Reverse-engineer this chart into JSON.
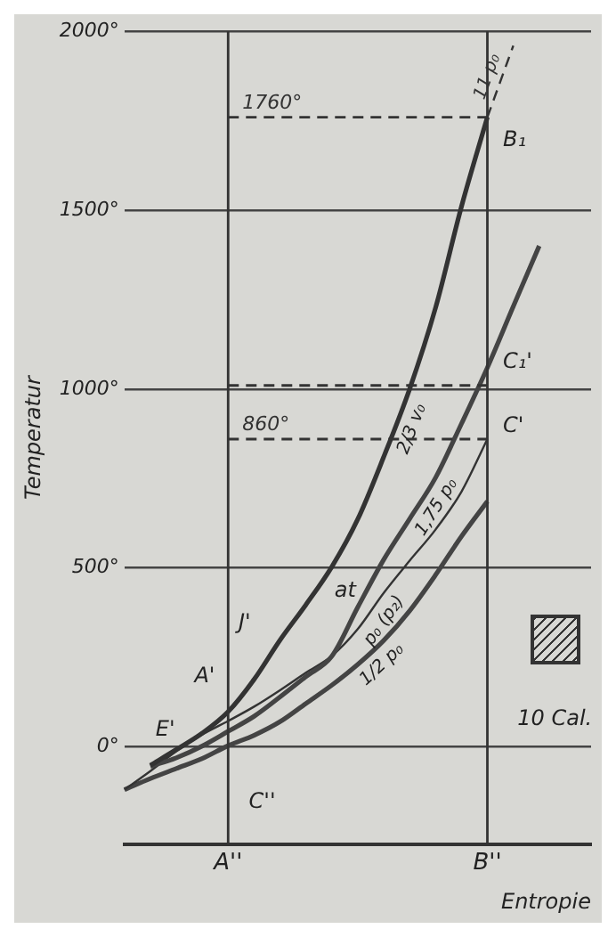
{
  "chart_data": {
    "type": "line",
    "xlabel": "Entropie",
    "ylabel": "Temperatur",
    "categories": [
      null,
      null,
      null,
      null,
      "A''",
      null,
      null,
      null,
      null,
      null,
      null,
      null,
      null,
      null,
      "B''",
      null,
      null,
      null,
      null
    ],
    "ylim": [
      -273,
      2000
    ],
    "yticks": [
      {
        "value": 0,
        "label": "0°"
      },
      {
        "value": 500,
        "label": "500°"
      },
      {
        "value": 1000,
        "label": "1000°"
      },
      {
        "value": 1500,
        "label": "1500°"
      },
      {
        "value": 2000,
        "label": "2000°"
      }
    ],
    "grid": "y",
    "marker": "none",
    "series": [
      {
        "name": "2/3 v₀",
        "color": "#333333",
        "values": [
          null,
          -52,
          -8,
          38,
          98,
          188,
          298,
          397,
          503,
          636,
          810,
          1000,
          1227,
          1510,
          1760,
          null,
          null,
          null,
          null
        ]
      },
      {
        "name": "11 p₀",
        "color": "#333333",
        "line_style": "dashed",
        "values": [
          null,
          null,
          null,
          null,
          null,
          null,
          null,
          null,
          null,
          null,
          null,
          null,
          null,
          null,
          1760,
          1960,
          null,
          null,
          null
        ]
      },
      {
        "name": "1,75 p₀",
        "color": "#444444",
        "values": [
          null,
          -55,
          -31,
          2,
          43,
          85,
          139,
          196,
          253,
          390,
          523,
          637,
          752,
          903,
          1060,
          1231,
          1400,
          null,
          null
        ]
      },
      {
        "name": "p₀ (p₂)",
        "color": "#333333",
        "values": [
          -120,
          -68,
          -13,
          34,
          72,
          112,
          158,
          207,
          254,
          329,
          430,
          520,
          607,
          713,
          860,
          null,
          null,
          null,
          null
        ]
      },
      {
        "name": "1/2 p₀",
        "color": "#444444",
        "values": [
          -120,
          -89,
          -61,
          -33,
          3,
          32,
          70,
          121,
          172,
          230,
          297,
          380,
          480,
          588,
          686,
          null,
          null,
          null,
          null
        ]
      }
    ],
    "ref_lines": [
      {
        "axis": "y",
        "value": 1760,
        "label": "1760°",
        "line_style": "dashed",
        "color": "#333333"
      },
      {
        "axis": "y",
        "value": 1010,
        "label": null,
        "line_style": "dashed",
        "color": "#333333"
      },
      {
        "axis": "y",
        "value": 860,
        "label": "860°",
        "line_style": "dashed",
        "color": "#333333"
      },
      {
        "axis": "x",
        "value": "A''",
        "label": null,
        "line_style": "solid",
        "color": "#333333"
      },
      {
        "axis": "x",
        "value": "B''",
        "label": null,
        "line_style": "solid",
        "color": "#333333"
      }
    ],
    "annotations": [
      "B₁",
      "C₁'",
      "C'",
      "J'",
      "A'",
      "E'",
      "C''",
      "at",
      "10 Cal."
    ]
  }
}
